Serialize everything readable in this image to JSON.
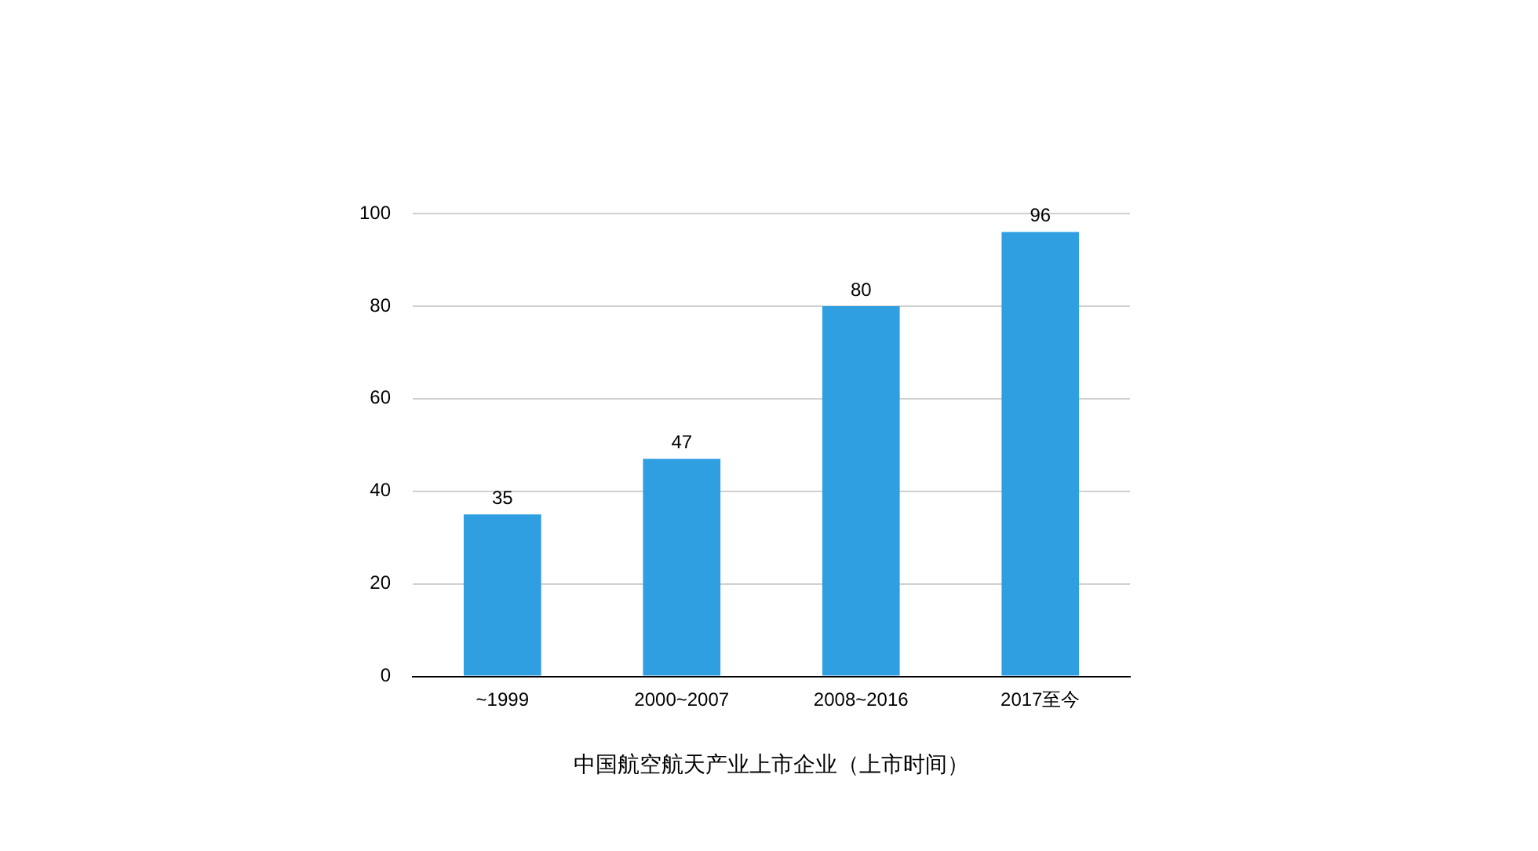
{
  "chart_data": {
    "type": "bar",
    "xlabel": "中国航空航天产业上市企业（上市时间）",
    "categories": [
      "~1999",
      "2000~2007",
      "2008~2016",
      "2017至今"
    ],
    "values": [
      35,
      47,
      80,
      96
    ],
    "color": "#2f9fe2",
    "ylim": [
      0,
      100
    ],
    "yticks": [
      0,
      20,
      40,
      60,
      80,
      100
    ],
    "grid": "y",
    "data_labels": true,
    "legend": false
  }
}
